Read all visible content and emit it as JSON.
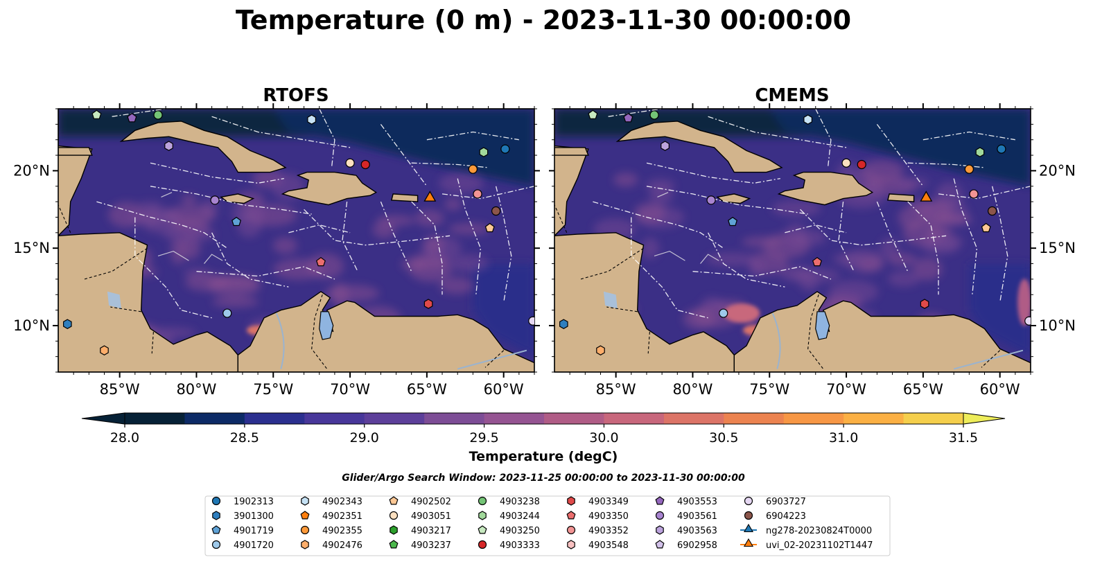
{
  "title": "Temperature (0 m) - 2023-11-30 00:00:00",
  "panels": [
    {
      "title": "RTOFS"
    },
    {
      "title": "CMEMS"
    }
  ],
  "map": {
    "lon_range": [
      -89,
      -58
    ],
    "lat_range": [
      7,
      24
    ],
    "lon_ticks": [
      "85°W",
      "80°W",
      "75°W",
      "70°W",
      "65°W",
      "60°W"
    ],
    "lat_ticks": [
      "20°N",
      "15°N",
      "10°N"
    ],
    "colors": {
      "land": "#d2b48c",
      "lake": "#8fb4e0",
      "ocean_base": "#3b2f86",
      "deep_cold": "#0a2540",
      "eez_lines": "#ffffff"
    }
  },
  "colorbar": {
    "label": "Temperature (degC)",
    "min": 28.0,
    "max": 31.5,
    "ticks": [
      "28.0",
      "28.5",
      "29.0",
      "29.5",
      "30.0",
      "30.5",
      "31.0",
      "31.5"
    ],
    "levels": [
      "#062136",
      "#0c2a66",
      "#2b2f8f",
      "#48379a",
      "#5d3f9a",
      "#7d4d96",
      "#955492",
      "#b05c86",
      "#c8677c",
      "#dc7467",
      "#ec8350",
      "#f79745",
      "#fbb044",
      "#f5cf4c",
      "#eeed5a"
    ]
  },
  "search_window": "Glider/Argo Search Window: 2023-11-25 00:00:00 to 2023-11-30 00:00:00",
  "legend": {
    "columns": [
      [
        {
          "label": "1902313",
          "marker": "circle",
          "color": "#1f77b4"
        },
        {
          "label": "3901300",
          "marker": "hexagon",
          "color": "#2f7fbf"
        },
        {
          "label": "4901719",
          "marker": "pentagon",
          "color": "#5fa2d6"
        },
        {
          "label": "4901720",
          "marker": "circle",
          "color": "#9ec9ea"
        }
      ],
      [
        {
          "label": "4902343",
          "marker": "hexagon",
          "color": "#c6e2f5"
        },
        {
          "label": "4902351",
          "marker": "pentagon",
          "color": "#ff7f0e"
        },
        {
          "label": "4902355",
          "marker": "circle",
          "color": "#fd9a3a"
        },
        {
          "label": "4902476",
          "marker": "hexagon",
          "color": "#fdae6b"
        }
      ],
      [
        {
          "label": "4902502",
          "marker": "pentagon",
          "color": "#fdc895"
        },
        {
          "label": "4903051",
          "marker": "circle",
          "color": "#fde0c0"
        },
        {
          "label": "4903217",
          "marker": "hexagon",
          "color": "#2ca02c"
        },
        {
          "label": "4903237",
          "marker": "pentagon",
          "color": "#4cb84c"
        }
      ],
      [
        {
          "label": "4903238",
          "marker": "circle",
          "color": "#74c476"
        },
        {
          "label": "4903244",
          "marker": "hexagon",
          "color": "#a1d99b"
        },
        {
          "label": "4903250",
          "marker": "pentagon",
          "color": "#c7e9c0"
        },
        {
          "label": "4903333",
          "marker": "circle",
          "color": "#d62728"
        }
      ],
      [
        {
          "label": "4903349",
          "marker": "hexagon",
          "color": "#e04a4a"
        },
        {
          "label": "4903350",
          "marker": "pentagon",
          "color": "#eb6e6e"
        },
        {
          "label": "4903352",
          "marker": "circle",
          "color": "#f29494"
        },
        {
          "label": "4903548",
          "marker": "hexagon",
          "color": "#f8c1c1"
        }
      ],
      [
        {
          "label": "4903553",
          "marker": "pentagon",
          "color": "#9467bd"
        },
        {
          "label": "4903561",
          "marker": "circle",
          "color": "#a884d0"
        },
        {
          "label": "4903563",
          "marker": "hexagon",
          "color": "#bca3dd"
        },
        {
          "label": "6902958",
          "marker": "pentagon",
          "color": "#d3c2ea"
        }
      ],
      [
        {
          "label": "6903727",
          "marker": "circle",
          "color": "#e6d8f3"
        },
        {
          "label": "6904223",
          "marker": "circle",
          "color": "#8c564b"
        },
        {
          "label": "ng278-20230824T0000",
          "marker": "triangle-line",
          "color": "#1f77b4"
        },
        {
          "label": "uvi_02-20231102T1447",
          "marker": "triangle-line",
          "color": "#ff7f0e"
        }
      ]
    ]
  },
  "floats": [
    {
      "id": "4903250",
      "marker": "pentagon",
      "color": "#c7e9c0",
      "lon": -86.5,
      "lat": 23.6
    },
    {
      "id": "4903553",
      "marker": "pentagon",
      "color": "#9467bd",
      "lon": -84.2,
      "lat": 23.4
    },
    {
      "id": "4903238",
      "marker": "circle",
      "color": "#74c476",
      "lon": -82.5,
      "lat": 23.6
    },
    {
      "id": "4902343",
      "marker": "hexagon",
      "color": "#c6e2f5",
      "lon": -72.5,
      "lat": 23.3
    },
    {
      "id": "4903563",
      "marker": "hexagon",
      "color": "#bca3dd",
      "lon": -81.8,
      "lat": 21.6
    },
    {
      "id": "4903244",
      "marker": "hexagon",
      "color": "#a1d99b",
      "lon": -61.3,
      "lat": 21.2
    },
    {
      "id": "1902313",
      "marker": "circle",
      "color": "#1f77b4",
      "lon": -59.9,
      "lat": 21.4
    },
    {
      "id": "4903051",
      "marker": "circle",
      "color": "#fde0c0",
      "lon": -70.0,
      "lat": 20.5
    },
    {
      "id": "4903333",
      "marker": "circle",
      "color": "#d62728",
      "lon": -69.0,
      "lat": 20.4
    },
    {
      "id": "4902355",
      "marker": "circle",
      "color": "#fd9a3a",
      "lon": -62.0,
      "lat": 20.1
    },
    {
      "id": "4903352",
      "marker": "circle",
      "color": "#f29494",
      "lon": -61.7,
      "lat": 18.5
    },
    {
      "id": "4903561",
      "marker": "circle",
      "color": "#a884d0",
      "lon": -78.8,
      "lat": 18.1
    },
    {
      "id": "6904223",
      "marker": "circle",
      "color": "#8c564b",
      "lon": -60.5,
      "lat": 17.4
    },
    {
      "id": "4901719",
      "marker": "pentagon",
      "color": "#5fa2d6",
      "lon": -77.4,
      "lat": 16.7
    },
    {
      "id": "4902502",
      "marker": "pentagon",
      "color": "#fdc895",
      "lon": -60.9,
      "lat": 16.3
    },
    {
      "id": "4903350",
      "marker": "pentagon",
      "color": "#eb6e6e",
      "lon": -71.9,
      "lat": 14.1
    },
    {
      "id": "4903349",
      "marker": "hexagon",
      "color": "#e04a4a",
      "lon": -64.9,
      "lat": 11.4
    },
    {
      "id": "4901720",
      "marker": "circle",
      "color": "#9ec9ea",
      "lon": -78.0,
      "lat": 10.8
    },
    {
      "id": "3901300",
      "marker": "hexagon",
      "color": "#2f7fbf",
      "lon": -88.4,
      "lat": 10.1
    },
    {
      "id": "6903727",
      "marker": "circle",
      "color": "#e6d8f3",
      "lon": -58.1,
      "lat": 10.3
    },
    {
      "id": "4902476",
      "marker": "hexagon",
      "color": "#fdae6b",
      "lon": -86.0,
      "lat": 8.4
    }
  ],
  "gliders": [
    {
      "id": "uvi_02-20231102T1447",
      "color": "#ff7f0e",
      "lon": -64.8,
      "lat": 18.2
    }
  ]
}
